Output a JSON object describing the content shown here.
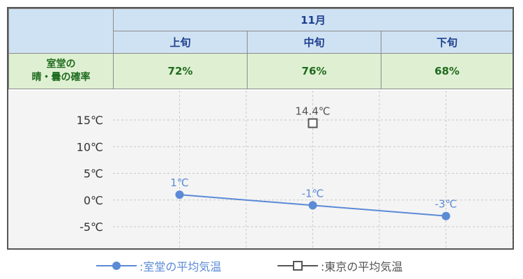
{
  "table": {
    "month": "11月",
    "periods": [
      "上旬",
      "中旬",
      "下旬"
    ],
    "rate_label_line1": "室堂の",
    "rate_label_line2": "晴・曇の確率",
    "rates": [
      "72%",
      "76%",
      "68%"
    ]
  },
  "chart_data": {
    "type": "line",
    "categories": [
      "上旬",
      "中旬",
      "下旬"
    ],
    "y_ticks": [
      "15℃",
      "10℃",
      "5℃",
      "0℃",
      "-5℃"
    ],
    "y_tick_values": [
      15,
      10,
      5,
      0,
      -5
    ],
    "ylim": [
      -10,
      20
    ],
    "grid": true,
    "series": [
      {
        "name": "室堂の平均気温",
        "values": [
          1,
          -1,
          -3
        ],
        "labels": [
          "1℃",
          "-1℃",
          "-3℃"
        ],
        "color": "#5b8ad6",
        "marker": "circle"
      },
      {
        "name": "東京の平均気温",
        "values": [
          null,
          14.4,
          null
        ],
        "labels": [
          "",
          "14.4℃",
          ""
        ],
        "color": "#555555",
        "marker": "square"
      }
    ]
  },
  "legend": {
    "series1": ":室堂の平均気温",
    "series2": ":東京の平均気温"
  },
  "colors": {
    "header_blue": "#cfe2f3",
    "header_green": "#dff0d2",
    "muro_line": "#5b8ad6",
    "tokyo_marker": "#555555"
  }
}
